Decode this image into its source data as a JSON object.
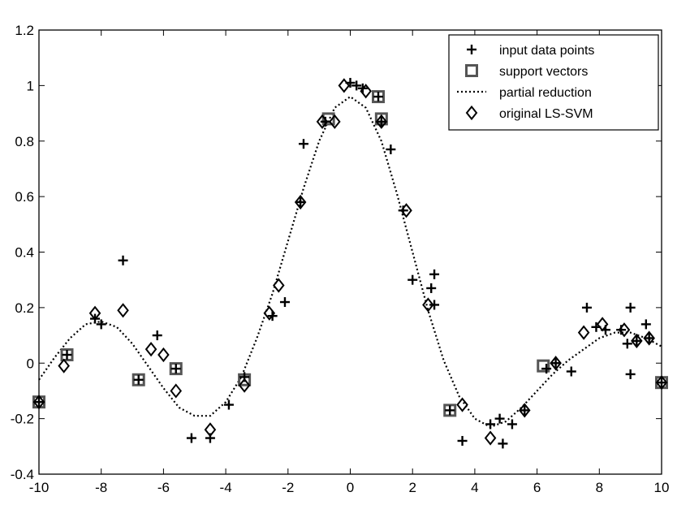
{
  "chart_data": {
    "type": "scatter",
    "title": "",
    "xlabel": "",
    "ylabel": "",
    "xlim": [
      -10,
      10
    ],
    "ylim": [
      -0.4,
      1.2
    ],
    "x_ticks": [
      -10,
      -8,
      -6,
      -4,
      -2,
      0,
      2,
      4,
      6,
      8,
      10
    ],
    "y_ticks": [
      -0.4,
      -0.2,
      0,
      0.2,
      0.4,
      0.6,
      0.8,
      1,
      1.2
    ],
    "x_tick_labels": [
      "-10",
      "-8",
      "-6",
      "-4",
      "-2",
      "0",
      "2",
      "4",
      "6",
      "8",
      "10"
    ],
    "y_tick_labels": [
      "-0.4",
      "-0.2",
      "0",
      "0.2",
      "0.4",
      "0.6",
      "0.8",
      "1",
      "1.2"
    ],
    "grid": false,
    "legend_position": "top-right",
    "series": [
      {
        "name": "input data points",
        "marker": "plus",
        "color": "#000000",
        "x": [
          -10,
          -9.1,
          -8.2,
          -8.0,
          -7.3,
          -6.8,
          -6.2,
          -5.6,
          -5.1,
          -4.5,
          -3.9,
          -3.4,
          -2.5,
          -2.1,
          -1.6,
          -1.5,
          -0.8,
          0.0,
          0.2,
          0.4,
          0.9,
          1.0,
          1.3,
          1.7,
          2.0,
          2.6,
          2.7,
          2.7,
          3.2,
          3.6,
          4.5,
          4.8,
          4.9,
          5.2,
          5.6,
          6.3,
          6.6,
          7.1,
          7.6,
          7.9,
          8.2,
          8.7,
          8.9,
          9.0,
          9.0,
          9.2,
          9.5,
          9.6,
          10.0
        ],
        "y": [
          -0.14,
          0.03,
          0.16,
          0.14,
          0.37,
          -0.06,
          0.1,
          -0.02,
          -0.27,
          -0.27,
          -0.15,
          -0.05,
          0.17,
          0.22,
          0.58,
          0.79,
          0.87,
          1.01,
          1.0,
          0.99,
          0.96,
          0.87,
          0.77,
          0.55,
          0.3,
          0.27,
          0.32,
          0.21,
          -0.17,
          -0.28,
          -0.22,
          -0.2,
          -0.29,
          -0.22,
          -0.17,
          -0.02,
          0.0,
          -0.03,
          0.2,
          0.13,
          0.12,
          0.12,
          0.07,
          0.2,
          -0.04,
          0.08,
          0.14,
          0.09,
          -0.07
        ]
      },
      {
        "name": "support vectors",
        "marker": "square",
        "color": "#555555",
        "x": [
          -10.0,
          -9.1,
          -6.8,
          -5.6,
          -3.4,
          -0.7,
          0.9,
          1.0,
          3.2,
          6.2,
          10.0
        ],
        "y": [
          -0.14,
          0.03,
          -0.06,
          -0.02,
          -0.06,
          0.88,
          0.96,
          0.88,
          -0.17,
          -0.01,
          -0.07
        ]
      },
      {
        "name": "partial reduction",
        "marker": "dotted-line",
        "color": "#000000",
        "x": [
          -10,
          -9.5,
          -9,
          -8.5,
          -8,
          -7.5,
          -7,
          -6.5,
          -6,
          -5.5,
          -5,
          -4.5,
          -4,
          -3.5,
          -3,
          -2.5,
          -2,
          -1.5,
          -1,
          -0.5,
          0,
          0.5,
          1,
          1.5,
          2,
          2.5,
          3,
          3.5,
          4,
          4.5,
          5,
          5.5,
          6,
          6.5,
          7,
          7.5,
          8,
          8.5,
          9,
          9.5,
          10
        ],
        "y": [
          -0.06,
          0.02,
          0.09,
          0.14,
          0.15,
          0.13,
          0.07,
          -0.01,
          -0.09,
          -0.16,
          -0.19,
          -0.19,
          -0.14,
          -0.05,
          0.09,
          0.25,
          0.44,
          0.63,
          0.8,
          0.92,
          0.96,
          0.92,
          0.8,
          0.61,
          0.4,
          0.19,
          0.01,
          -0.12,
          -0.2,
          -0.23,
          -0.21,
          -0.16,
          -0.1,
          -0.04,
          0.01,
          0.05,
          0.09,
          0.11,
          0.11,
          0.09,
          0.06
        ]
      },
      {
        "name": "original LS-SVM",
        "marker": "diamond",
        "color": "#000000",
        "x": [
          -10.0,
          -9.2,
          -8.2,
          -7.3,
          -6.4,
          -6.0,
          -5.6,
          -4.5,
          -3.4,
          -2.6,
          -2.3,
          -1.6,
          -0.9,
          -0.5,
          -0.2,
          0.5,
          1.0,
          1.8,
          2.5,
          3.6,
          4.5,
          5.6,
          6.6,
          7.5,
          8.1,
          8.8,
          9.2,
          9.6,
          10.0
        ],
        "y": [
          -0.14,
          -0.01,
          0.18,
          0.19,
          0.05,
          0.03,
          -0.1,
          -0.24,
          -0.08,
          0.18,
          0.28,
          0.58,
          0.87,
          0.87,
          1.0,
          0.98,
          0.87,
          0.55,
          0.21,
          -0.15,
          -0.27,
          -0.17,
          0.0,
          0.11,
          0.14,
          0.12,
          0.08,
          0.09,
          -0.07
        ]
      }
    ]
  }
}
